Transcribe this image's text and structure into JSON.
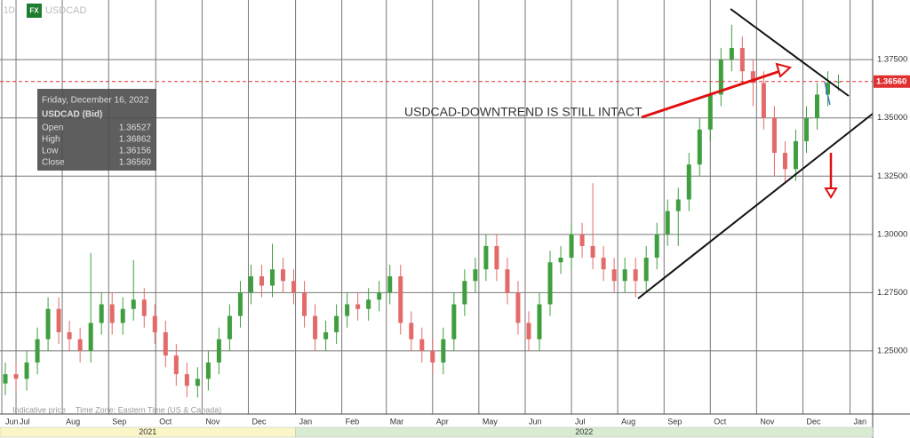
{
  "chart_data": {
    "type": "candlestick",
    "interval": "1D",
    "badge": "FX",
    "symbol": "USDCAD",
    "footnote": "Indicative price",
    "timezone": "Time Zone: Eastern Time (US & Canada)",
    "annotation": "USDCAD-DOWNTREND IS STILL INTACT",
    "up_color": "#3f9f3f",
    "down_color": "#e46a6a",
    "grid": true,
    "open": [
      1.236,
      1.24,
      1.238,
      1.245,
      1.255,
      1.268,
      1.258,
      1.255,
      1.25,
      1.262,
      1.27,
      1.262,
      1.268,
      1.272,
      1.265,
      1.258,
      1.248,
      1.24,
      1.235,
      1.238,
      1.245,
      1.255,
      1.265,
      1.275,
      1.282,
      1.278,
      1.285,
      1.28,
      1.275,
      1.265,
      1.255,
      1.258,
      1.265,
      1.27,
      1.268,
      1.272,
      1.275,
      1.282,
      1.262,
      1.255,
      1.25,
      1.245,
      1.255,
      1.27,
      1.28,
      1.285,
      1.295,
      1.285,
      1.275,
      1.262,
      1.255,
      1.27,
      1.288,
      1.29,
      1.3,
      1.295,
      1.29,
      1.285,
      1.28,
      1.285,
      1.28,
      1.29,
      1.3,
      1.31,
      1.315,
      1.33,
      1.345,
      1.36,
      1.375,
      1.38,
      1.37,
      1.365,
      1.35,
      1.335,
      1.328,
      1.34,
      1.35,
      1.36,
      1.36527
    ],
    "high": [
      1.245,
      1.245,
      1.25,
      1.26,
      1.273,
      1.273,
      1.263,
      1.26,
      1.292,
      1.275,
      1.275,
      1.273,
      1.289,
      1.277,
      1.27,
      1.263,
      1.253,
      1.245,
      1.243,
      1.25,
      1.26,
      1.27,
      1.28,
      1.287,
      1.287,
      1.296,
      1.29,
      1.285,
      1.28,
      1.27,
      1.263,
      1.27,
      1.275,
      1.275,
      1.277,
      1.28,
      1.287,
      1.287,
      1.267,
      1.26,
      1.255,
      1.26,
      1.275,
      1.285,
      1.29,
      1.3,
      1.3,
      1.29,
      1.28,
      1.267,
      1.275,
      1.293,
      1.295,
      1.305,
      1.305,
      1.322,
      1.295,
      1.29,
      1.29,
      1.29,
      1.295,
      1.305,
      1.315,
      1.32,
      1.335,
      1.35,
      1.365,
      1.38,
      1.39,
      1.385,
      1.375,
      1.37,
      1.355,
      1.34,
      1.345,
      1.355,
      1.365,
      1.37,
      1.36862
    ],
    "low": [
      1.231,
      1.233,
      1.233,
      1.24,
      1.25,
      1.253,
      1.25,
      1.245,
      1.245,
      1.257,
      1.257,
      1.257,
      1.263,
      1.26,
      1.253,
      1.243,
      1.235,
      1.23,
      1.23,
      1.233,
      1.24,
      1.25,
      1.26,
      1.27,
      1.273,
      1.273,
      1.275,
      1.27,
      1.26,
      1.25,
      1.25,
      1.253,
      1.26,
      1.263,
      1.263,
      1.267,
      1.27,
      1.257,
      1.25,
      1.245,
      1.24,
      1.24,
      1.25,
      1.265,
      1.275,
      1.28,
      1.28,
      1.27,
      1.257,
      1.25,
      1.25,
      1.265,
      1.283,
      1.285,
      1.29,
      1.285,
      1.28,
      1.275,
      1.275,
      1.273,
      1.275,
      1.285,
      1.295,
      1.295,
      1.31,
      1.325,
      1.34,
      1.355,
      1.37,
      1.365,
      1.355,
      1.345,
      1.325,
      1.322,
      1.323,
      1.335,
      1.345,
      1.355,
      1.36156
    ],
    "close": [
      1.24,
      1.238,
      1.245,
      1.255,
      1.268,
      1.258,
      1.255,
      1.25,
      1.262,
      1.27,
      1.262,
      1.268,
      1.272,
      1.265,
      1.258,
      1.248,
      1.24,
      1.235,
      1.238,
      1.245,
      1.255,
      1.265,
      1.275,
      1.282,
      1.278,
      1.285,
      1.28,
      1.275,
      1.265,
      1.255,
      1.258,
      1.265,
      1.27,
      1.268,
      1.272,
      1.275,
      1.282,
      1.262,
      1.255,
      1.25,
      1.245,
      1.255,
      1.27,
      1.28,
      1.285,
      1.295,
      1.285,
      1.275,
      1.262,
      1.255,
      1.27,
      1.288,
      1.29,
      1.3,
      1.295,
      1.29,
      1.285,
      1.28,
      1.285,
      1.28,
      1.29,
      1.3,
      1.31,
      1.315,
      1.33,
      1.345,
      1.36,
      1.375,
      1.38,
      1.37,
      1.365,
      1.35,
      1.335,
      1.328,
      1.34,
      1.35,
      1.36,
      1.365,
      1.3656
    ],
    "xlim": [
      -0.5,
      81.2
    ],
    "xticks": [
      {
        "value": -0.33,
        "label": "Jun"
      },
      {
        "value": 1.0,
        "label": "Jul"
      },
      {
        "value": 5.33,
        "label": "Aug"
      },
      {
        "value": 9.67,
        "label": "Sep"
      },
      {
        "value": 14.08,
        "label": "Oct"
      },
      {
        "value": 18.42,
        "label": "Nov"
      },
      {
        "value": 22.75,
        "label": "Dec"
      },
      {
        "value": 27.17,
        "label": "Jan"
      },
      {
        "value": 31.5,
        "label": "Feb"
      },
      {
        "value": 35.67,
        "label": "Mar"
      },
      {
        "value": 40.0,
        "label": "Apr"
      },
      {
        "value": 44.33,
        "label": "May"
      },
      {
        "value": 48.67,
        "label": "Jun"
      },
      {
        "value": 53.0,
        "label": "Jul"
      },
      {
        "value": 57.33,
        "label": "Aug"
      },
      {
        "value": 61.67,
        "label": "Sep"
      },
      {
        "value": 66.0,
        "label": "Oct"
      },
      {
        "value": 70.33,
        "label": "Nov"
      },
      {
        "value": 74.67,
        "label": "Dec"
      },
      {
        "value": 79.08,
        "label": "Jan"
      }
    ],
    "years": [
      {
        "label": "2021",
        "start": -0.5,
        "end": 27.17,
        "color": "#fbf6c8"
      },
      {
        "label": "2022",
        "start": 27.17,
        "end": 81.2,
        "color": "#d8ecd2"
      }
    ],
    "ylim": [
      1.2229,
      1.4006
    ],
    "yticks": [
      {
        "value": 1.25,
        "label": "1.25000"
      },
      {
        "value": 1.275,
        "label": "1.27500"
      },
      {
        "value": 1.3,
        "label": "1.30000"
      },
      {
        "value": 1.325,
        "label": "1.32500"
      },
      {
        "value": 1.35,
        "label": "1.35000"
      },
      {
        "value": 1.375,
        "label": "1.37500"
      }
    ],
    "last_price": 1.3656,
    "last_price_label": "1.36560",
    "tooltip": {
      "date": "Friday, December 16, 2022",
      "title": "USDCAD (Bid)",
      "rows": [
        {
          "label": "Open",
          "value": "1.36527"
        },
        {
          "label": "High",
          "value": "1.36862"
        },
        {
          "label": "Low",
          "value": "1.36156"
        },
        {
          "label": "Close",
          "value": "1.36560"
        }
      ]
    }
  }
}
